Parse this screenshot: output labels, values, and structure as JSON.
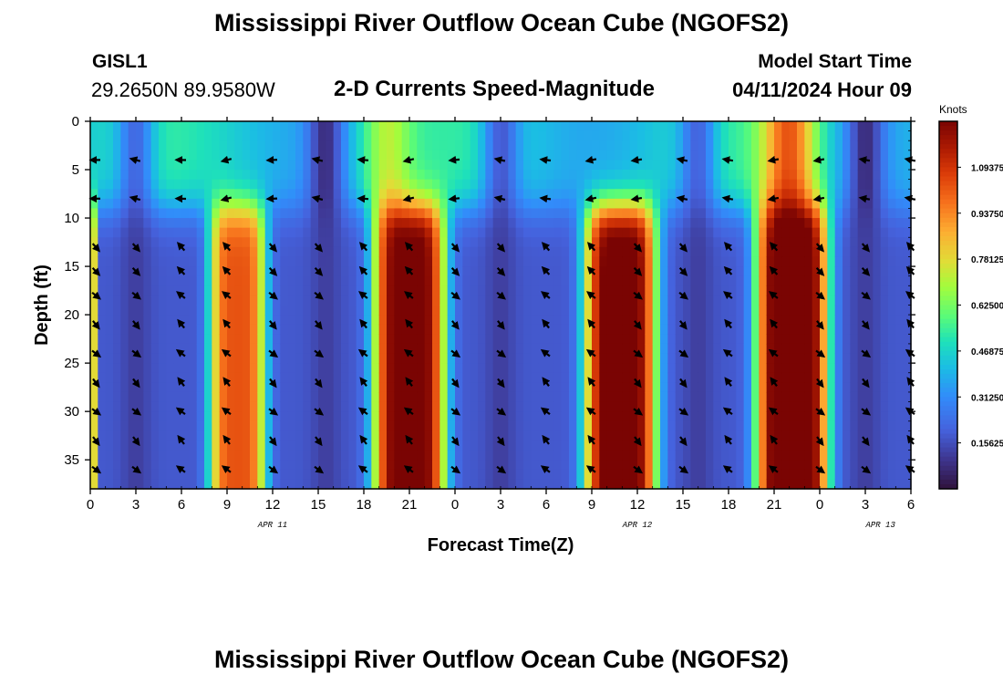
{
  "header": {
    "title": "Mississippi River Outflow Ocean Cube (NGOFS2)",
    "station_id": "GISL1",
    "station_coords": "29.2650N  89.9580W",
    "subtitle": "2-D Currents Speed-Magnitude",
    "model_start_label": "Model Start Time",
    "model_start_value": "04/11/2024 Hour 09"
  },
  "footer": {
    "title": "Mississippi River Outflow Ocean Cube (NGOFS2)"
  },
  "chart_data": {
    "type": "heatmap",
    "title": "2-D Currents Speed-Magnitude",
    "xlabel": "Forecast Time(Z)",
    "ylabel": "Depth (ft)",
    "x_tick_labels": [
      "0",
      "3",
      "6",
      "9",
      "12",
      "15",
      "18",
      "21",
      "0",
      "3",
      "6",
      "9",
      "12",
      "15",
      "18",
      "21",
      "0",
      "3",
      "6"
    ],
    "x_range_hours": [
      0,
      54
    ],
    "date_labels": [
      {
        "text": "APR 11",
        "hour": 12
      },
      {
        "text": "APR 12",
        "hour": 36
      },
      {
        "text": "APR 13",
        "hour": 52
      }
    ],
    "y_ticks": [
      0,
      5,
      10,
      15,
      20,
      25,
      30,
      35
    ],
    "y_range": [
      0,
      38
    ],
    "colorbar": {
      "title": "Knots",
      "tick_labels": [
        "1.09375",
        "0.93750",
        "0.78125",
        "0.62500",
        "0.46875",
        "0.31250",
        "0.15625"
      ],
      "tick_values": [
        1.09375,
        0.9375,
        0.78125,
        0.625,
        0.46875,
        0.3125,
        0.15625
      ],
      "range": [
        0,
        1.25
      ]
    },
    "speed_model": {
      "surface_layer_depth_ft": 9,
      "deep_peaks": [
        {
          "hour_center": 9.7,
          "width_hours": 1.9,
          "amplitude": 0.85
        },
        {
          "hour_center": 21.0,
          "width_hours": 2.4,
          "amplitude": 1.12
        },
        {
          "hour_center": 34.9,
          "width_hours": 2.4,
          "amplitude": 1.13
        },
        {
          "hour_center": 46.2,
          "width_hours": 2.4,
          "amplitude": 1.2
        }
      ],
      "surface_peaks": [
        {
          "hour_center": 19.5,
          "width_hours": 1.6,
          "amplitude": 0.7
        },
        {
          "hour_center": 46.0,
          "width_hours": 1.8,
          "amplitude": 1.0
        }
      ],
      "minima_hours": [
        3.0,
        15.5,
        27.0,
        40.0,
        51.0
      ]
    },
    "arrows": {
      "depth_rows_ft": [
        4,
        8,
        13,
        15.5,
        18,
        21,
        24,
        27,
        30,
        33,
        36
      ],
      "hour_step": 3
    }
  }
}
